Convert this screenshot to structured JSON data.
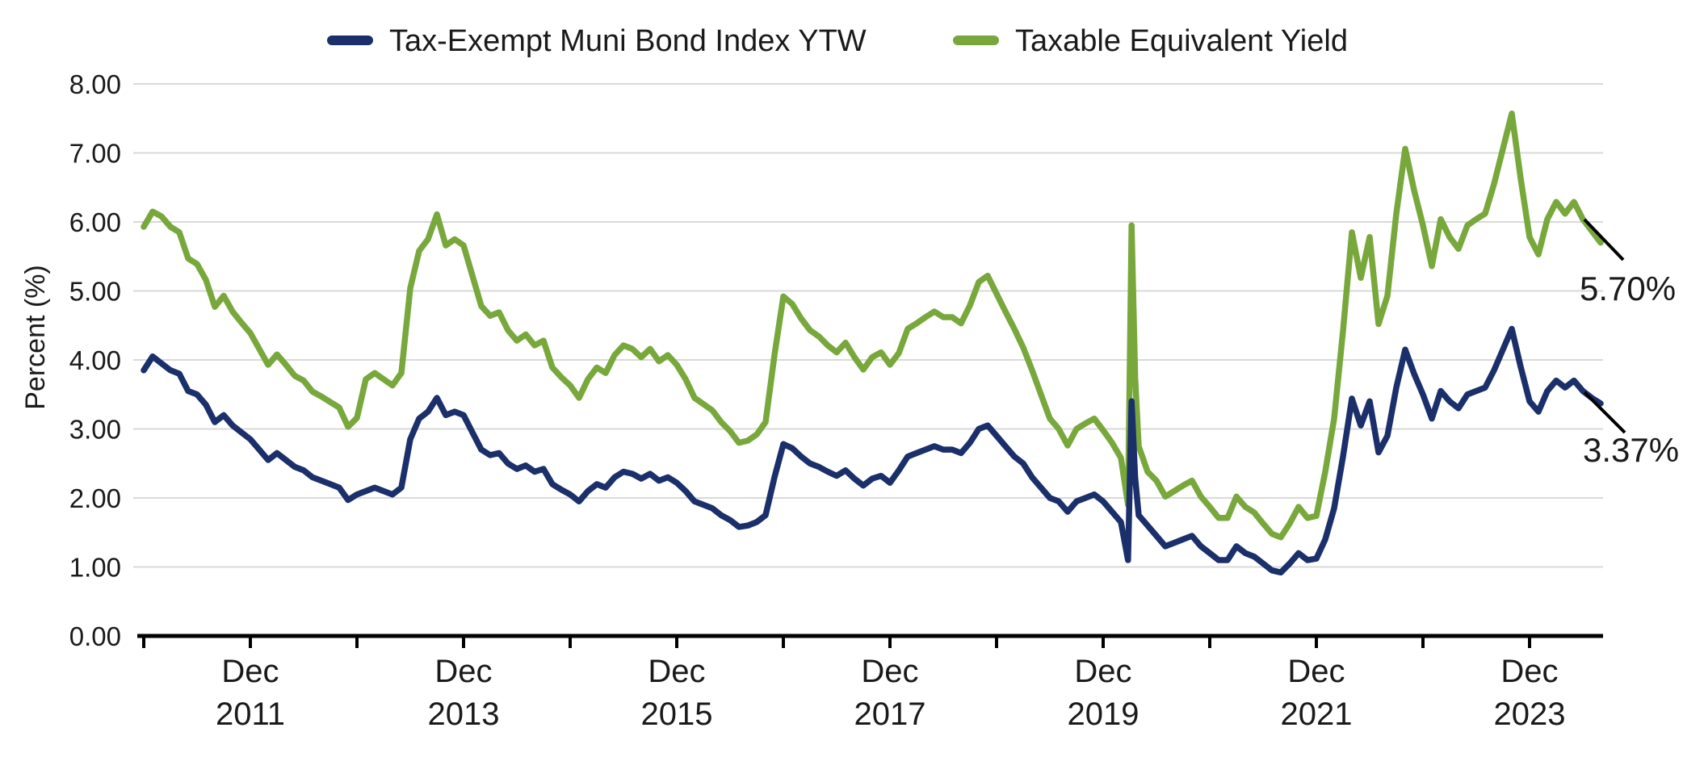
{
  "legend": [
    {
      "label": "Tax-Exempt Muni Bond Index YTW",
      "color": "#1b2f6b"
    },
    {
      "label": "Taxable Equivalent Yield",
      "color": "#78a83c"
    }
  ],
  "y_axis": {
    "title": "Percent (%)",
    "ticks": [
      "0.00",
      "1.00",
      "2.00",
      "3.00",
      "4.00",
      "5.00",
      "6.00",
      "7.00",
      "8.00"
    ],
    "min": 0,
    "max": 8
  },
  "x_axis": {
    "tick_month": "Dec",
    "tick_years": [
      "2011",
      "2013",
      "2015",
      "2017",
      "2019",
      "2021",
      "2023"
    ],
    "start": "Dec 2010",
    "end": "Aug 2024"
  },
  "end_labels": [
    {
      "text": "5.70%",
      "color": "#6f9a3c"
    },
    {
      "text": "3.37%",
      "color": "#1b306e"
    }
  ],
  "chart_data": {
    "type": "line",
    "title": "",
    "xlabel": "",
    "ylabel": "Percent (%)",
    "ylim": [
      0,
      8
    ],
    "grid": "horizontal",
    "legend_position": "top-center",
    "x_unit": "months since Dec 2010",
    "x_tick_positions_months": [
      0,
      12,
      24,
      36,
      48,
      60,
      72,
      84,
      96,
      108,
      120,
      132,
      144,
      156
    ],
    "labeled_tick_months": [
      12,
      36,
      60,
      84,
      108,
      132,
      156
    ],
    "series": [
      {
        "name": "Tax-Exempt Muni Bond Index YTW",
        "color": "#1b2f6b",
        "final_value": "3.37%"
      },
      {
        "name": "Taxable Equivalent Yield",
        "color": "#78a83c",
        "final_value": "5.70%"
      }
    ],
    "points": [
      [
        0,
        3.85,
        5.93
      ],
      [
        1,
        4.05,
        6.15
      ],
      [
        2,
        3.95,
        6.08
      ],
      [
        3,
        3.85,
        5.93
      ],
      [
        4,
        3.8,
        5.85
      ],
      [
        5,
        3.55,
        5.47
      ],
      [
        6,
        3.5,
        5.39
      ],
      [
        7,
        3.35,
        5.16
      ],
      [
        8,
        3.1,
        4.77
      ],
      [
        9,
        3.2,
        4.93
      ],
      [
        10,
        3.05,
        4.7
      ],
      [
        11,
        2.95,
        4.54
      ],
      [
        12,
        2.85,
        4.39
      ],
      [
        13,
        2.7,
        4.16
      ],
      [
        14,
        2.55,
        3.93
      ],
      [
        15,
        2.65,
        4.08
      ],
      [
        16,
        2.55,
        3.93
      ],
      [
        17,
        2.45,
        3.77
      ],
      [
        18,
        2.4,
        3.7
      ],
      [
        19,
        2.3,
        3.54
      ],
      [
        20,
        2.25,
        3.47
      ],
      [
        21,
        2.2,
        3.39
      ],
      [
        22,
        2.15,
        3.31
      ],
      [
        23,
        1.97,
        3.03
      ],
      [
        24,
        2.05,
        3.16
      ],
      [
        25,
        2.1,
        3.72
      ],
      [
        26,
        2.15,
        3.81
      ],
      [
        27,
        2.1,
        3.72
      ],
      [
        28,
        2.05,
        3.63
      ],
      [
        29,
        2.15,
        3.81
      ],
      [
        30,
        2.85,
        5.04
      ],
      [
        31,
        3.15,
        5.58
      ],
      [
        32,
        3.25,
        5.75
      ],
      [
        33,
        3.45,
        6.11
      ],
      [
        34,
        3.2,
        5.66
      ],
      [
        35,
        3.25,
        5.75
      ],
      [
        36,
        3.2,
        5.66
      ],
      [
        37,
        2.95,
        5.22
      ],
      [
        38,
        2.7,
        4.78
      ],
      [
        39,
        2.62,
        4.64
      ],
      [
        40,
        2.65,
        4.69
      ],
      [
        41,
        2.5,
        4.43
      ],
      [
        42,
        2.42,
        4.28
      ],
      [
        43,
        2.47,
        4.37
      ],
      [
        44,
        2.38,
        4.21
      ],
      [
        45,
        2.42,
        4.28
      ],
      [
        46,
        2.2,
        3.89
      ],
      [
        47,
        2.12,
        3.75
      ],
      [
        48,
        2.05,
        3.63
      ],
      [
        49,
        1.95,
        3.45
      ],
      [
        50,
        2.1,
        3.72
      ],
      [
        51,
        2.2,
        3.89
      ],
      [
        52,
        2.15,
        3.81
      ],
      [
        53,
        2.3,
        4.07
      ],
      [
        54,
        2.38,
        4.21
      ],
      [
        55,
        2.35,
        4.16
      ],
      [
        56,
        2.28,
        4.04
      ],
      [
        57,
        2.35,
        4.16
      ],
      [
        58,
        2.25,
        3.98
      ],
      [
        59,
        2.3,
        4.07
      ],
      [
        60,
        2.22,
        3.93
      ],
      [
        61,
        2.1,
        3.72
      ],
      [
        62,
        1.95,
        3.45
      ],
      [
        63,
        1.9,
        3.36
      ],
      [
        64,
        1.85,
        3.27
      ],
      [
        65,
        1.75,
        3.1
      ],
      [
        66,
        1.68,
        2.97
      ],
      [
        67,
        1.58,
        2.8
      ],
      [
        68,
        1.6,
        2.83
      ],
      [
        69,
        1.65,
        2.92
      ],
      [
        70,
        1.75,
        3.1
      ],
      [
        71,
        2.3,
        4.07
      ],
      [
        72,
        2.78,
        4.92
      ],
      [
        73,
        2.72,
        4.81
      ],
      [
        74,
        2.6,
        4.6
      ],
      [
        75,
        2.5,
        4.43
      ],
      [
        76,
        2.45,
        4.34
      ],
      [
        77,
        2.38,
        4.21
      ],
      [
        78,
        2.32,
        4.11
      ],
      [
        79,
        2.4,
        4.25
      ],
      [
        80,
        2.28,
        4.04
      ],
      [
        81,
        2.18,
        3.86
      ],
      [
        82,
        2.28,
        4.04
      ],
      [
        83,
        2.32,
        4.11
      ],
      [
        84,
        2.22,
        3.93
      ],
      [
        85,
        2.4,
        4.1
      ],
      [
        86,
        2.6,
        4.45
      ],
      [
        87,
        2.65,
        4.53
      ],
      [
        88,
        2.7,
        4.62
      ],
      [
        89,
        2.75,
        4.7
      ],
      [
        90,
        2.7,
        4.62
      ],
      [
        91,
        2.7,
        4.62
      ],
      [
        92,
        2.65,
        4.53
      ],
      [
        93,
        2.8,
        4.79
      ],
      [
        94,
        3.0,
        5.13
      ],
      [
        95,
        3.05,
        5.22
      ],
      [
        96,
        2.9,
        4.96
      ],
      [
        97,
        2.75,
        4.7
      ],
      [
        98,
        2.6,
        4.45
      ],
      [
        99,
        2.5,
        4.18
      ],
      [
        100,
        2.3,
        3.85
      ],
      [
        101,
        2.15,
        3.5
      ],
      [
        102,
        2.0,
        3.15
      ],
      [
        103,
        1.95,
        3.0
      ],
      [
        104,
        1.8,
        2.76
      ],
      [
        105,
        1.95,
        3.0
      ],
      [
        106,
        2.0,
        3.08
      ],
      [
        107,
        2.05,
        3.15
      ],
      [
        108,
        1.95,
        2.98
      ],
      [
        109,
        1.8,
        2.8
      ],
      [
        110,
        1.65,
        2.58
      ],
      [
        110.8,
        1.1,
        1.9
      ],
      [
        111.2,
        3.4,
        5.95
      ],
      [
        111.6,
        2.3,
        3.75
      ],
      [
        112,
        1.75,
        2.75
      ],
      [
        113,
        1.6,
        2.38
      ],
      [
        114,
        1.45,
        2.25
      ],
      [
        115,
        1.3,
        2.02
      ],
      [
        116,
        1.35,
        2.1
      ],
      [
        117,
        1.4,
        2.18
      ],
      [
        118,
        1.45,
        2.25
      ],
      [
        119,
        1.3,
        2.02
      ],
      [
        120,
        1.2,
        1.87
      ],
      [
        121,
        1.1,
        1.71
      ],
      [
        122,
        1.1,
        1.71
      ],
      [
        123,
        1.3,
        2.02
      ],
      [
        124,
        1.2,
        1.87
      ],
      [
        125,
        1.15,
        1.79
      ],
      [
        126,
        1.05,
        1.63
      ],
      [
        127,
        0.95,
        1.48
      ],
      [
        128,
        0.92,
        1.43
      ],
      [
        129,
        1.05,
        1.63
      ],
      [
        130,
        1.2,
        1.87
      ],
      [
        131,
        1.1,
        1.71
      ],
      [
        132,
        1.12,
        1.74
      ],
      [
        133,
        1.4,
        2.38
      ],
      [
        134,
        1.85,
        3.15
      ],
      [
        135,
        2.6,
        4.42
      ],
      [
        136,
        3.44,
        5.85
      ],
      [
        137,
        3.05,
        5.19
      ],
      [
        138,
        3.4,
        5.78
      ],
      [
        139,
        2.66,
        4.52
      ],
      [
        140,
        2.9,
        4.93
      ],
      [
        141,
        3.6,
        6.12
      ],
      [
        142,
        4.15,
        7.06
      ],
      [
        143,
        3.8,
        6.46
      ],
      [
        144,
        3.5,
        5.95
      ],
      [
        145,
        3.15,
        5.36
      ],
      [
        146,
        3.55,
        6.04
      ],
      [
        147,
        3.4,
        5.78
      ],
      [
        148,
        3.3,
        5.61
      ],
      [
        149,
        3.5,
        5.95
      ],
      [
        150,
        3.55,
        6.04
      ],
      [
        151,
        3.6,
        6.12
      ],
      [
        152,
        3.85,
        6.55
      ],
      [
        153,
        4.15,
        7.06
      ],
      [
        154,
        4.45,
        7.57
      ],
      [
        155,
        3.9,
        6.63
      ],
      [
        156,
        3.4,
        5.78
      ],
      [
        157,
        3.25,
        5.53
      ],
      [
        158,
        3.55,
        6.04
      ],
      [
        159,
        3.7,
        6.29
      ],
      [
        160,
        3.6,
        6.12
      ],
      [
        161,
        3.7,
        6.29
      ],
      [
        162,
        3.55,
        6.04
      ],
      [
        163,
        3.45,
        5.87
      ],
      [
        164,
        3.37,
        5.7
      ]
    ]
  }
}
